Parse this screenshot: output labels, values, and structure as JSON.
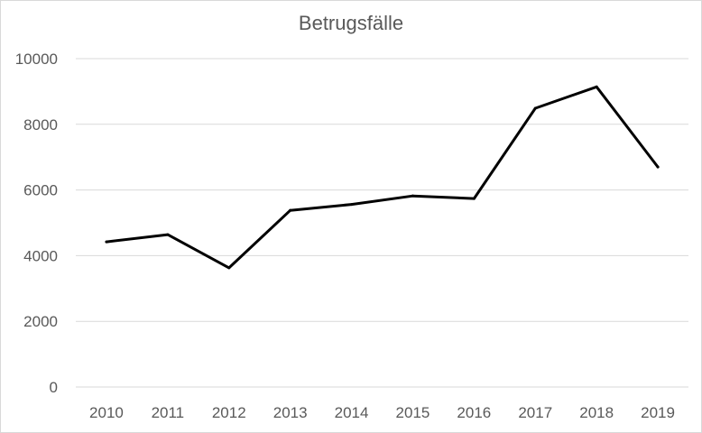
{
  "chart_data": {
    "type": "line",
    "title": "Betrugsfälle",
    "xlabel": "",
    "ylabel": "",
    "categories": [
      "2010",
      "2011",
      "2012",
      "2013",
      "2014",
      "2015",
      "2016",
      "2017",
      "2018",
      "2019"
    ],
    "series": [
      {
        "values": [
          4420,
          4640,
          3630,
          5380,
          5560,
          5820,
          5740,
          8490,
          9140,
          6700
        ]
      }
    ],
    "ylim": [
      0,
      10000
    ],
    "yticks": [
      "0",
      "2000",
      "4000",
      "6000",
      "8000",
      "10000"
    ],
    "grid": true,
    "legend": "none",
    "colors": {
      "line": "#000000",
      "grid": "#d9d9d9",
      "text": "#595959"
    }
  }
}
